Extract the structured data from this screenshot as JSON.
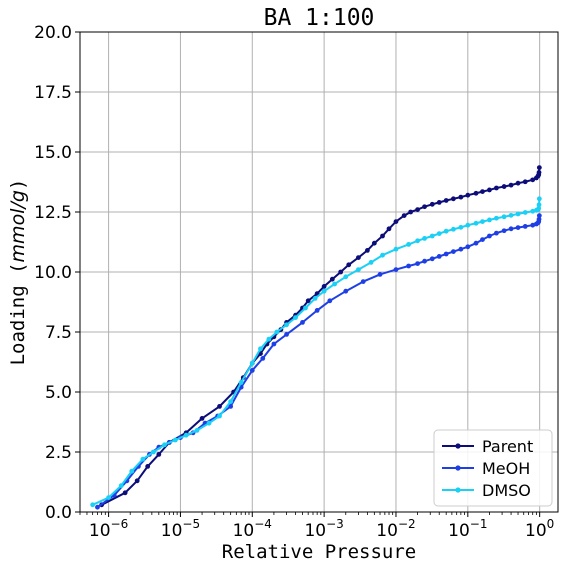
{
  "chart_data": {
    "type": "line",
    "title": "BA 1:100",
    "xlabel": "Relative Pressure",
    "ylabel": "Loading (mmol/g)",
    "xscale": "log",
    "xlim": [
      4e-07,
      1.8
    ],
    "ylim": [
      0,
      20
    ],
    "xticks": [
      {
        "value": 1e-06,
        "base": "10",
        "exp": "−6"
      },
      {
        "value": 1e-05,
        "base": "10",
        "exp": "−5"
      },
      {
        "value": 0.0001,
        "base": "10",
        "exp": "−4"
      },
      {
        "value": 0.001,
        "base": "10",
        "exp": "−3"
      },
      {
        "value": 0.01,
        "base": "10",
        "exp": "−2"
      },
      {
        "value": 0.1,
        "base": "10",
        "exp": "−1"
      },
      {
        "value": 1,
        "base": "10",
        "exp": "0"
      }
    ],
    "yticks": [
      {
        "value": 0,
        "label": "0.0"
      },
      {
        "value": 2.5,
        "label": "2.5"
      },
      {
        "value": 5,
        "label": "5.0"
      },
      {
        "value": 7.5,
        "label": "7.5"
      },
      {
        "value": 10,
        "label": "10.0"
      },
      {
        "value": 12.5,
        "label": "12.5"
      },
      {
        "value": 15,
        "label": "15.0"
      },
      {
        "value": 17.5,
        "label": "17.5"
      },
      {
        "value": 20,
        "label": "20.0"
      }
    ],
    "grid": true,
    "legend_position": "bottom-right",
    "series": [
      {
        "name": "Parent",
        "color": "#0d0d7a",
        "x": [
          8e-07,
          1.7e-06,
          2.5e-06,
          3.5e-06,
          5e-06,
          7e-06,
          1.2e-05,
          2e-05,
          3.5e-05,
          5.5e-05,
          7.5e-05,
          0.0001,
          0.00013,
          0.00016,
          0.0002,
          0.00025,
          0.0003,
          0.0004,
          0.0005,
          0.0006,
          0.0008,
          0.001,
          0.0013,
          0.0017,
          0.0022,
          0.003,
          0.004,
          0.005,
          0.0065,
          0.008,
          0.01,
          0.013,
          0.016,
          0.02,
          0.025,
          0.032,
          0.04,
          0.05,
          0.063,
          0.08,
          0.1,
          0.13,
          0.16,
          0.2,
          0.25,
          0.32,
          0.4,
          0.5,
          0.63,
          0.8,
          0.9,
          0.95,
          0.97,
          0.98,
          0.99
        ],
        "y": [
          0.3,
          0.8,
          1.3,
          1.9,
          2.4,
          2.9,
          3.3,
          3.9,
          4.4,
          5.0,
          5.6,
          6.2,
          6.6,
          7.0,
          7.3,
          7.6,
          7.9,
          8.2,
          8.5,
          8.8,
          9.1,
          9.4,
          9.7,
          10.0,
          10.3,
          10.6,
          10.9,
          11.2,
          11.5,
          11.8,
          12.1,
          12.35,
          12.5,
          12.6,
          12.72,
          12.82,
          12.9,
          12.98,
          13.05,
          13.12,
          13.2,
          13.28,
          13.35,
          13.42,
          13.5,
          13.56,
          13.62,
          13.7,
          13.76,
          13.84,
          13.92,
          14.0,
          14.05,
          14.15,
          14.35
        ]
      },
      {
        "name": "MeOH",
        "color": "#1e3fe6",
        "x": [
          7e-07,
          1.2e-06,
          1.8e-06,
          2.6e-06,
          3.7e-06,
          5e-06,
          7e-06,
          1e-05,
          1.5e-05,
          2.2e-05,
          3.3e-05,
          5e-05,
          7e-05,
          0.0001,
          0.00014,
          0.0002,
          0.0003,
          0.0005,
          0.0008,
          0.0012,
          0.002,
          0.0035,
          0.006,
          0.01,
          0.015,
          0.02,
          0.025,
          0.032,
          0.04,
          0.05,
          0.063,
          0.08,
          0.1,
          0.13,
          0.16,
          0.2,
          0.25,
          0.32,
          0.4,
          0.5,
          0.63,
          0.8,
          0.9,
          0.95,
          0.97,
          0.98,
          0.99
        ],
        "y": [
          0.2,
          0.7,
          1.3,
          1.9,
          2.4,
          2.7,
          2.9,
          3.1,
          3.3,
          3.7,
          4.0,
          4.4,
          5.2,
          5.9,
          6.4,
          7.0,
          7.4,
          7.9,
          8.4,
          8.8,
          9.2,
          9.6,
          9.9,
          10.1,
          10.25,
          10.35,
          10.45,
          10.55,
          10.65,
          10.75,
          10.85,
          10.95,
          11.05,
          11.2,
          11.35,
          11.5,
          11.62,
          11.72,
          11.8,
          11.85,
          11.9,
          11.95,
          12.0,
          12.05,
          12.1,
          12.2,
          12.35
        ]
      },
      {
        "name": "DMSO",
        "color": "#1ad0f5",
        "x": [
          6e-07,
          1e-06,
          1.5e-06,
          2.1e-06,
          3e-06,
          4.2e-06,
          6e-06,
          8.5e-06,
          1.2e-05,
          1.7e-05,
          2.5e-05,
          3.5e-05,
          5e-05,
          7e-05,
          0.0001,
          0.00013,
          0.00017,
          0.00022,
          0.0003,
          0.0004,
          0.00055,
          0.00075,
          0.001,
          0.0014,
          0.002,
          0.003,
          0.0045,
          0.0065,
          0.01,
          0.015,
          0.02,
          0.025,
          0.032,
          0.04,
          0.05,
          0.063,
          0.08,
          0.1,
          0.13,
          0.16,
          0.2,
          0.25,
          0.32,
          0.4,
          0.5,
          0.63,
          0.8,
          0.9,
          0.95,
          0.97,
          0.98,
          0.99
        ],
        "y": [
          0.3,
          0.6,
          1.1,
          1.7,
          2.2,
          2.5,
          2.8,
          3.0,
          3.2,
          3.4,
          3.7,
          4.0,
          4.6,
          5.4,
          6.2,
          6.8,
          7.2,
          7.5,
          7.8,
          8.1,
          8.5,
          8.9,
          9.2,
          9.5,
          9.8,
          10.1,
          10.4,
          10.7,
          10.95,
          11.15,
          11.3,
          11.4,
          11.5,
          11.6,
          11.7,
          11.78,
          11.86,
          11.95,
          12.03,
          12.1,
          12.17,
          12.24,
          12.3,
          12.36,
          12.42,
          12.48,
          12.53,
          12.57,
          12.6,
          12.65,
          12.8,
          13.05
        ]
      }
    ]
  }
}
